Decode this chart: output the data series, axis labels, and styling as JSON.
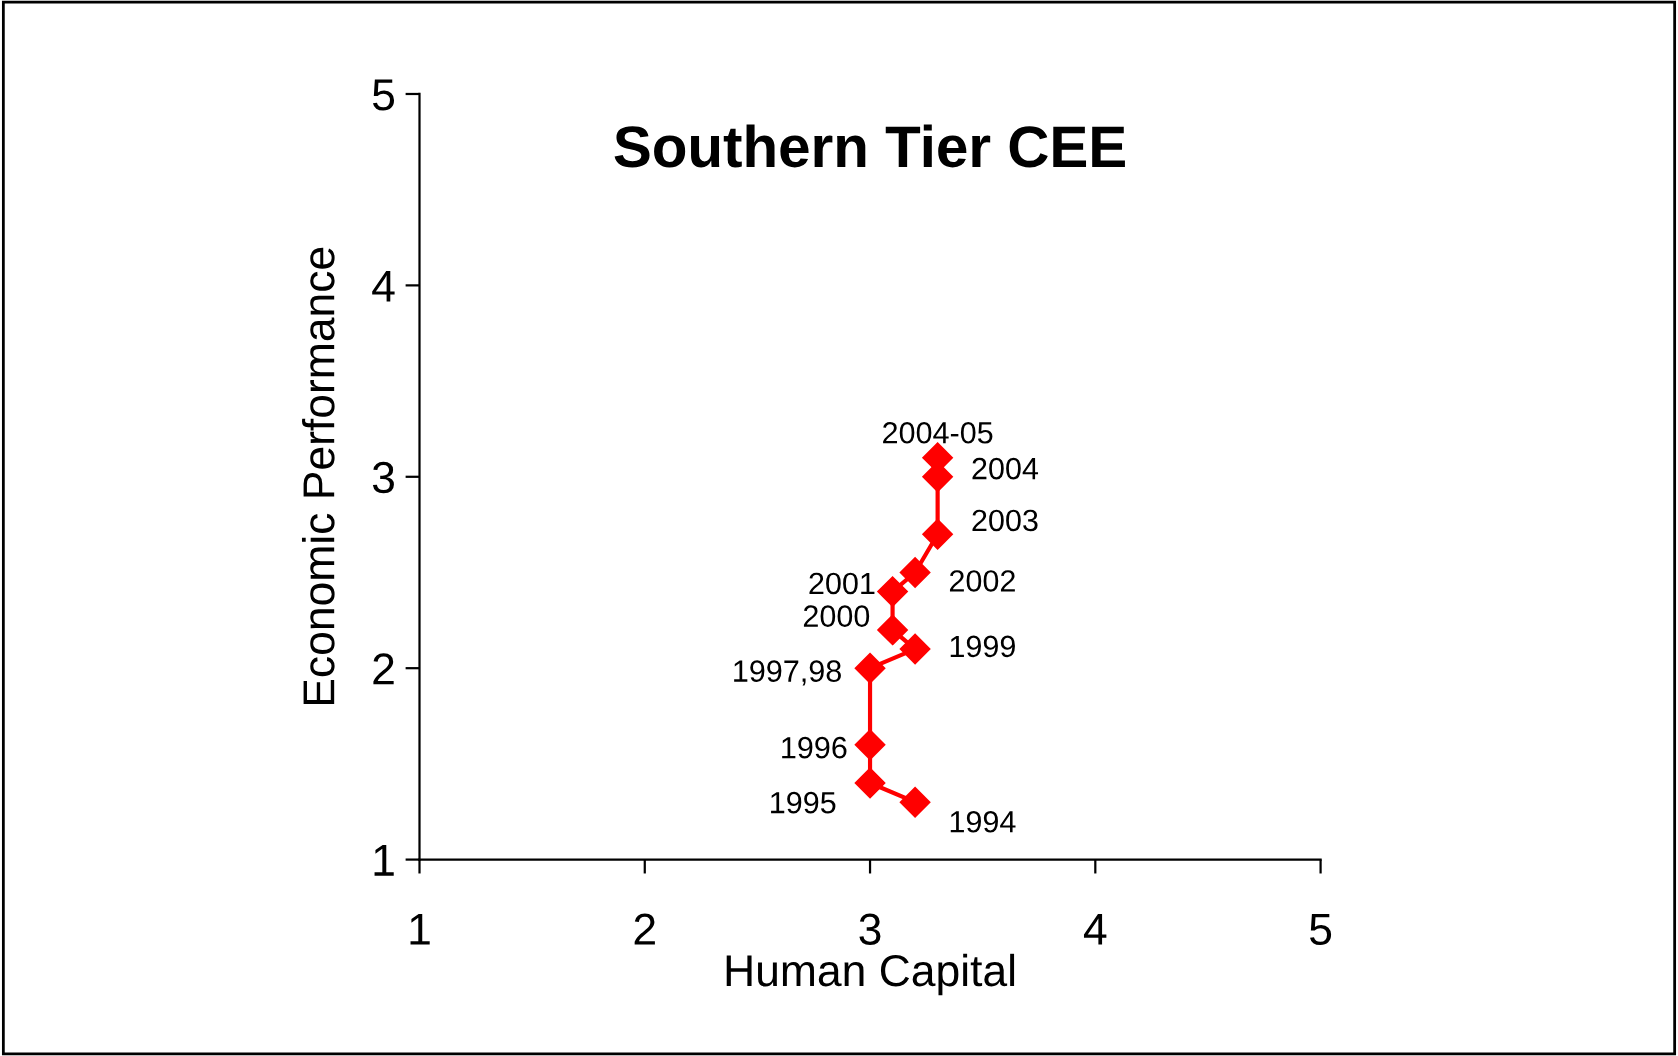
{
  "chart_data": {
    "type": "line",
    "title": "Southern Tier CEE",
    "xlabel": "Human Capital",
    "ylabel": "Economic Performance",
    "x": [
      3.2,
      3.0,
      3.0,
      3.0,
      3.2,
      3.1,
      3.1,
      3.2,
      3.3,
      3.3,
      3.3
    ],
    "series": [
      {
        "color": "#ff0000",
        "values": [
          1.3,
          1.4,
          1.6,
          2.0,
          2.1,
          2.2,
          2.4,
          2.5,
          2.7,
          3.0,
          3.1
        ]
      }
    ],
    "annotations": [
      {
        "text": "1994",
        "x": 3.2,
        "y": 1.3
      },
      {
        "text": "1995",
        "x": 3.0,
        "y": 1.4
      },
      {
        "text": "1996",
        "x": 3.0,
        "y": 1.6
      },
      {
        "text": "1997,98",
        "x": 3.0,
        "y": 2.0
      },
      {
        "text": "1999",
        "x": 3.2,
        "y": 2.1
      },
      {
        "text": "2000",
        "x": 3.1,
        "y": 2.2
      },
      {
        "text": "2001",
        "x": 3.1,
        "y": 2.4
      },
      {
        "text": "2002",
        "x": 3.2,
        "y": 2.5
      },
      {
        "text": "2003",
        "x": 3.3,
        "y": 2.7
      },
      {
        "text": "2004",
        "x": 3.3,
        "y": 3.0
      },
      {
        "text": "2004-05",
        "x": 3.3,
        "y": 3.1
      }
    ],
    "xlim": [
      1,
      5
    ],
    "ylim": [
      1,
      5
    ],
    "xticks": [
      1,
      2,
      3,
      4,
      5
    ],
    "yticks": [
      1,
      2,
      3,
      4,
      5
    ],
    "marker": "diamond",
    "line_style": "solid",
    "grid": false,
    "legend": false
  }
}
